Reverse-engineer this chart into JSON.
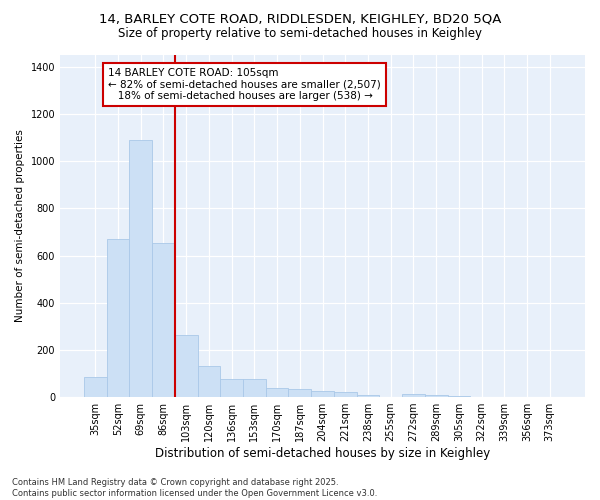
{
  "title_line1": "14, BARLEY COTE ROAD, RIDDLESDEN, KEIGHLEY, BD20 5QA",
  "title_line2": "Size of property relative to semi-detached houses in Keighley",
  "xlabel": "Distribution of semi-detached houses by size in Keighley",
  "ylabel": "Number of semi-detached properties",
  "categories": [
    "35sqm",
    "52sqm",
    "69sqm",
    "86sqm",
    "103sqm",
    "120sqm",
    "136sqm",
    "153sqm",
    "170sqm",
    "187sqm",
    "204sqm",
    "221sqm",
    "238sqm",
    "255sqm",
    "272sqm",
    "289sqm",
    "305sqm",
    "322sqm",
    "339sqm",
    "356sqm",
    "373sqm"
  ],
  "values": [
    85,
    670,
    1090,
    655,
    265,
    130,
    75,
    75,
    40,
    35,
    25,
    20,
    10,
    0,
    13,
    8,
    4,
    0,
    0,
    0,
    0
  ],
  "bar_color": "#cce0f5",
  "bar_edge_color": "#aac8e8",
  "vline_index": 4,
  "vline_color": "#cc0000",
  "annotation_line1": "14 BARLEY COTE ROAD: 105sqm",
  "annotation_line2": "← 82% of semi-detached houses are smaller (2,507)",
  "annotation_line3": "18% of semi-detached houses are larger (538) →",
  "ylim": [
    0,
    1450
  ],
  "yticks": [
    0,
    200,
    400,
    600,
    800,
    1000,
    1200,
    1400
  ],
  "bg_color": "#ffffff",
  "plot_bg_color": "#e8f0fa",
  "footer_line1": "Contains HM Land Registry data © Crown copyright and database right 2025.",
  "footer_line2": "Contains public sector information licensed under the Open Government Licence v3.0.",
  "title_fontsize": 9.5,
  "subtitle_fontsize": 8.5,
  "xlabel_fontsize": 8.5,
  "ylabel_fontsize": 7.5,
  "tick_fontsize": 7,
  "annotation_fontsize": 7.5,
  "footer_fontsize": 6
}
